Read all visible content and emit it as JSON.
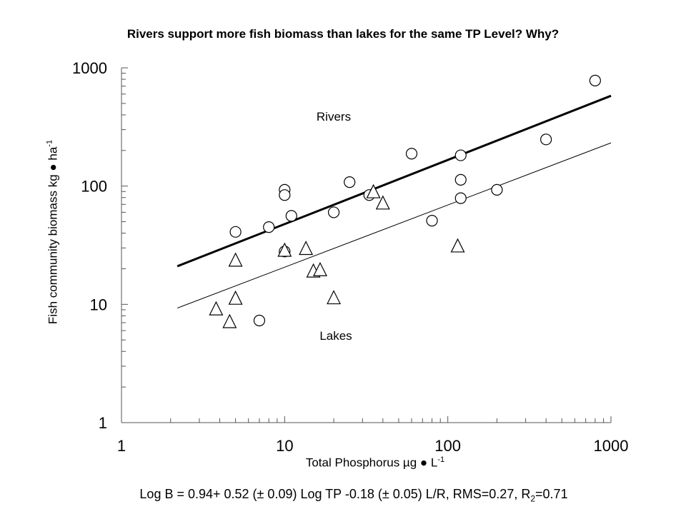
{
  "chart_data": {
    "type": "scatter",
    "title": "Rivers support more fish biomass than lakes for the same TP Level?  Why?",
    "xlabel": {
      "text": "Total Phosphorus µg  ●  L",
      "sup": "-1"
    },
    "ylabel": {
      "text": "Fish community biomass kg  ●  ha",
      "sup": "-1"
    },
    "xscale": "log",
    "yscale": "log",
    "xlim": [
      1,
      1000
    ],
    "ylim": [
      1,
      1000
    ],
    "x_ticks": [
      "1",
      "10",
      "100",
      "1000"
    ],
    "y_ticks": [
      "1",
      "10",
      "100",
      "1000"
    ],
    "grid": false,
    "annotations": {
      "rivers": "Rivers",
      "lakes": "Lakes"
    },
    "equation": {
      "main": "Log B = 0.94+ 0.52 (± 0.09) Log TP -0.18 (± 0.05) L/R, RMS=0.27, R",
      "sub": "2",
      "tail": "=0.71"
    },
    "series": [
      {
        "name": "Rivers",
        "marker": "circle",
        "points": [
          [
            5,
            41
          ],
          [
            7,
            7.3
          ],
          [
            8,
            45
          ],
          [
            10,
            93
          ],
          [
            10,
            84
          ],
          [
            10,
            28
          ],
          [
            11,
            56
          ],
          [
            20,
            60
          ],
          [
            25,
            108
          ],
          [
            33,
            84
          ],
          [
            60,
            188
          ],
          [
            80,
            51
          ],
          [
            120,
            182
          ],
          [
            120,
            113
          ],
          [
            120,
            79
          ],
          [
            200,
            93
          ],
          [
            400,
            248
          ],
          [
            800,
            780
          ]
        ]
      },
      {
        "name": "Lakes",
        "marker": "triangle",
        "points": [
          [
            3.8,
            9.1
          ],
          [
            4.6,
            7.1
          ],
          [
            5,
            11.2
          ],
          [
            5,
            23.5
          ],
          [
            10,
            28.5
          ],
          [
            13.5,
            29.5
          ],
          [
            15,
            19
          ],
          [
            16.5,
            19.5
          ],
          [
            20,
            11.3
          ],
          [
            35,
            89
          ],
          [
            40,
            71.5
          ],
          [
            115,
            31
          ]
        ]
      }
    ],
    "fit_lines": [
      {
        "name": "Rivers",
        "x": [
          2.2,
          1000
        ],
        "y": [
          21,
          580
        ]
      },
      {
        "name": "Lakes",
        "x": [
          2.2,
          1000
        ],
        "y": [
          9.3,
          232
        ]
      }
    ]
  }
}
